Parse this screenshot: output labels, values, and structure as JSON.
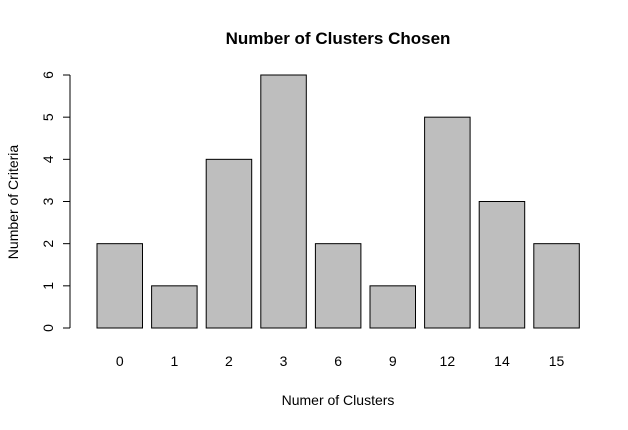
{
  "chart_data": {
    "type": "bar",
    "title": "Number of Clusters Chosen",
    "xlabel": "Numer of Clusters",
    "ylabel": "Number of Criteria",
    "categories": [
      "0",
      "1",
      "2",
      "3",
      "6",
      "9",
      "12",
      "14",
      "15"
    ],
    "values": [
      2,
      1,
      4,
      6,
      2,
      1,
      5,
      3,
      2
    ],
    "ylim": [
      0,
      6
    ],
    "yticks": [
      "0",
      "1",
      "2",
      "3",
      "4",
      "5",
      "6"
    ],
    "grid": false,
    "legend": "none",
    "bar_color": "#bebebe",
    "border_color": "#000000"
  }
}
